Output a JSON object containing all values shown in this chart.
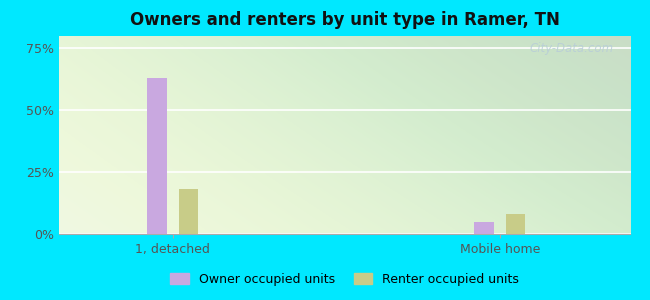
{
  "title": "Owners and renters by unit type in Ramer, TN",
  "categories": [
    "1, detached",
    "Mobile home"
  ],
  "owner_values": [
    63.0,
    5.0
  ],
  "renter_values": [
    18.0,
    8.0
  ],
  "owner_color": "#c9a8e0",
  "renter_color": "#c8cc88",
  "bar_width": 0.12,
  "group_positions": [
    1.0,
    3.0
  ],
  "xlim": [
    0.3,
    3.8
  ],
  "ylim": [
    0,
    80
  ],
  "yticks": [
    0,
    25,
    50,
    75
  ],
  "ytick_labels": [
    "0%",
    "25%",
    "50%",
    "75%"
  ],
  "legend_owner": "Owner occupied units",
  "legend_renter": "Renter occupied units",
  "watermark": "City-Data.com",
  "fig_bg": "#00e8ff",
  "ax_bg_color": "#edf8e2"
}
